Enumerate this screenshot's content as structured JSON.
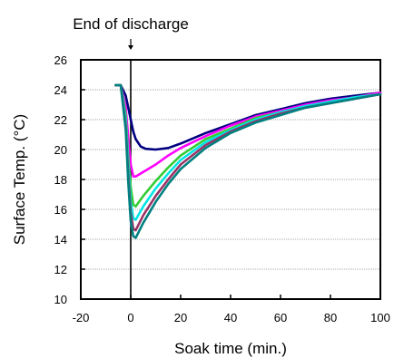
{
  "chart_data": {
    "type": "line",
    "title": "",
    "xlabel": "Soak time (min.)",
    "ylabel": "Surface Temp. (°C)",
    "xlim": [
      -20,
      100
    ],
    "ylim": [
      10,
      26
    ],
    "x_ticks": [
      -20,
      0,
      20,
      40,
      60,
      80,
      100
    ],
    "y_ticks": [
      10,
      12,
      14,
      16,
      18,
      20,
      22,
      24,
      26
    ],
    "x_tick_labels": [
      "-20",
      "0",
      "20",
      "40",
      "60",
      "80",
      "100"
    ],
    "y_tick_labels": [
      "10",
      "12",
      "14",
      "16",
      "18",
      "20",
      "22",
      "24",
      "26"
    ],
    "grid": "horizontal",
    "annotation": {
      "text": "End of discharge",
      "x": 0
    },
    "series": [
      {
        "color": "#000080",
        "points": [
          [
            -6,
            24.3
          ],
          [
            -4,
            24.3
          ],
          [
            -2,
            23.6
          ],
          [
            -1,
            22.8
          ],
          [
            0,
            22
          ],
          [
            1,
            21.2
          ],
          [
            2,
            20.7
          ],
          [
            4,
            20.2
          ],
          [
            6,
            20.05
          ],
          [
            10,
            20
          ],
          [
            15,
            20.1
          ],
          [
            20,
            20.4
          ],
          [
            30,
            21.1
          ],
          [
            40,
            21.7
          ],
          [
            50,
            22.3
          ],
          [
            60,
            22.7
          ],
          [
            70,
            23.1
          ],
          [
            80,
            23.4
          ],
          [
            90,
            23.6
          ],
          [
            100,
            23.8
          ]
        ]
      },
      {
        "color": "#ff00ff",
        "points": [
          [
            -6,
            24.3
          ],
          [
            -4,
            24.3
          ],
          [
            -2,
            22.8
          ],
          [
            -1,
            20.8
          ],
          [
            0,
            19
          ],
          [
            1,
            18.2
          ],
          [
            2,
            18.2
          ],
          [
            5,
            18.5
          ],
          [
            10,
            19
          ],
          [
            15,
            19.6
          ],
          [
            20,
            20.1
          ],
          [
            30,
            20.9
          ],
          [
            40,
            21.6
          ],
          [
            50,
            22.2
          ],
          [
            60,
            22.6
          ],
          [
            70,
            23
          ],
          [
            80,
            23.3
          ],
          [
            90,
            23.5
          ],
          [
            100,
            23.8
          ]
        ]
      },
      {
        "color": "#33cc33",
        "points": [
          [
            -6,
            24.3
          ],
          [
            -4,
            24.3
          ],
          [
            -2,
            22.3
          ],
          [
            -1,
            19.5
          ],
          [
            0,
            17.5
          ],
          [
            1,
            16.3
          ],
          [
            2,
            16.2
          ],
          [
            5,
            16.9
          ],
          [
            10,
            17.9
          ],
          [
            15,
            18.8
          ],
          [
            20,
            19.6
          ],
          [
            30,
            20.7
          ],
          [
            40,
            21.4
          ],
          [
            50,
            22.1
          ],
          [
            60,
            22.5
          ],
          [
            70,
            22.9
          ],
          [
            80,
            23.2
          ],
          [
            90,
            23.5
          ],
          [
            100,
            23.7
          ]
        ]
      },
      {
        "color": "#00e5e5",
        "points": [
          [
            -6,
            24.3
          ],
          [
            -4,
            24.3
          ],
          [
            -2,
            22
          ],
          [
            -1,
            19
          ],
          [
            0,
            16.5
          ],
          [
            1,
            15.4
          ],
          [
            2,
            15.3
          ],
          [
            5,
            16.2
          ],
          [
            10,
            17.4
          ],
          [
            15,
            18.4
          ],
          [
            20,
            19.3
          ],
          [
            30,
            20.5
          ],
          [
            40,
            21.3
          ],
          [
            50,
            22
          ],
          [
            60,
            22.5
          ],
          [
            70,
            22.9
          ],
          [
            80,
            23.2
          ],
          [
            90,
            23.5
          ],
          [
            100,
            23.7
          ]
        ]
      },
      {
        "color": "#993366",
        "points": [
          [
            -6,
            24.3
          ],
          [
            -4,
            24.3
          ],
          [
            -2,
            21.6
          ],
          [
            -1,
            18.3
          ],
          [
            0,
            15.8
          ],
          [
            1,
            14.7
          ],
          [
            2,
            14.6
          ],
          [
            5,
            15.6
          ],
          [
            10,
            16.9
          ],
          [
            15,
            18
          ],
          [
            20,
            19
          ],
          [
            30,
            20.3
          ],
          [
            40,
            21.2
          ],
          [
            50,
            21.9
          ],
          [
            60,
            22.4
          ],
          [
            70,
            22.8
          ],
          [
            80,
            23.1
          ],
          [
            90,
            23.4
          ],
          [
            100,
            23.7
          ]
        ]
      },
      {
        "color": "#008080",
        "points": [
          [
            -6,
            24.3
          ],
          [
            -4,
            24.3
          ],
          [
            -2,
            21.3
          ],
          [
            -1,
            17.8
          ],
          [
            0,
            15.2
          ],
          [
            1,
            14.2
          ],
          [
            2,
            14.1
          ],
          [
            5,
            15.1
          ],
          [
            10,
            16.5
          ],
          [
            15,
            17.7
          ],
          [
            20,
            18.7
          ],
          [
            30,
            20.1
          ],
          [
            40,
            21.1
          ],
          [
            50,
            21.8
          ],
          [
            60,
            22.3
          ],
          [
            70,
            22.8
          ],
          [
            80,
            23.1
          ],
          [
            90,
            23.4
          ],
          [
            100,
            23.7
          ]
        ]
      }
    ]
  }
}
